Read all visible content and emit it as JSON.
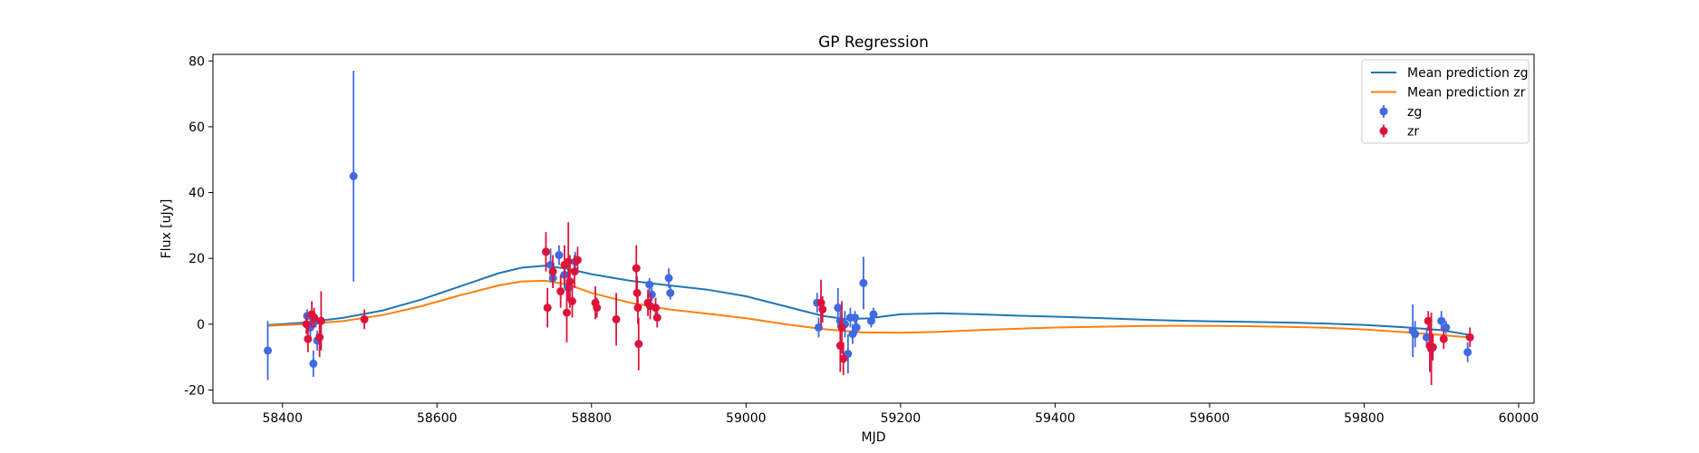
{
  "chart_data": {
    "type": "scatter",
    "title": "GP Regression",
    "xlabel": "MJD",
    "ylabel": "Flux [uJy]",
    "xlim": [
      58310,
      60020
    ],
    "ylim": [
      -24,
      82
    ],
    "xticks": [
      58400,
      58600,
      58800,
      59000,
      59200,
      59400,
      59600,
      59800,
      60000
    ],
    "yticks": [
      -20,
      0,
      20,
      40,
      60,
      80
    ],
    "legend_position": "top-right",
    "legend": [
      {
        "label": "Mean prediction zg",
        "kind": "line",
        "color": "#1f77b4"
      },
      {
        "label": "Mean prediction zr",
        "kind": "line",
        "color": "#ff7f0e"
      },
      {
        "label": "zg",
        "kind": "errorbar",
        "color": "#4169e1"
      },
      {
        "label": "zr",
        "kind": "errorbar",
        "color": "#dc143c"
      }
    ],
    "lines": [
      {
        "name": "Mean prediction zg",
        "color": "#1f77b4",
        "x": [
          58380,
          58430,
          58480,
          58530,
          58580,
          58630,
          58680,
          58710,
          58740,
          58770,
          58800,
          58850,
          58900,
          58950,
          59000,
          59050,
          59100,
          59130,
          59160,
          59200,
          59250,
          59300,
          59350,
          59400,
          59450,
          59500,
          59550,
          59600,
          59650,
          59700,
          59750,
          59800,
          59850,
          59900,
          59935
        ],
        "y": [
          -0.3,
          0.5,
          2.0,
          4.2,
          7.5,
          11.5,
          15.5,
          17.2,
          17.8,
          16.8,
          15.2,
          13.2,
          11.8,
          10.5,
          8.5,
          5.5,
          2.5,
          1.5,
          1.8,
          3.0,
          3.3,
          3.0,
          2.6,
          2.3,
          1.9,
          1.5,
          1.1,
          0.9,
          0.7,
          0.5,
          0.2,
          -0.2,
          -0.9,
          -1.8,
          -3.2
        ]
      },
      {
        "name": "Mean prediction zr",
        "color": "#ff7f0e",
        "x": [
          58380,
          58430,
          58480,
          58530,
          58580,
          58630,
          58680,
          58710,
          58740,
          58770,
          58800,
          58850,
          58900,
          58950,
          59000,
          59050,
          59100,
          59150,
          59200,
          59250,
          59300,
          59350,
          59400,
          59450,
          59500,
          59550,
          59600,
          59650,
          59700,
          59750,
          59800,
          59850,
          59900,
          59935
        ],
        "y": [
          -0.5,
          0.0,
          1.0,
          2.8,
          5.5,
          8.8,
          11.8,
          13.0,
          13.2,
          12.0,
          9.5,
          6.5,
          4.5,
          3.2,
          1.8,
          0.0,
          -1.5,
          -2.5,
          -2.6,
          -2.3,
          -1.8,
          -1.4,
          -1.0,
          -0.8,
          -0.6,
          -0.5,
          -0.5,
          -0.6,
          -0.8,
          -1.1,
          -1.6,
          -2.4,
          -3.3,
          -4.0
        ]
      }
    ],
    "series": [
      {
        "name": "zg",
        "color": "#4169e1",
        "points": [
          {
            "x": 58381,
            "y": -8,
            "err": 9
          },
          {
            "x": 58432,
            "y": 2.5,
            "err": 2
          },
          {
            "x": 58436,
            "y": -1,
            "err": 4
          },
          {
            "x": 58440,
            "y": -12,
            "err": 4
          },
          {
            "x": 58443,
            "y": 1,
            "err": 2
          },
          {
            "x": 58445,
            "y": -5,
            "err": 3
          },
          {
            "x": 58492,
            "y": 45,
            "err": 32
          },
          {
            "x": 58747,
            "y": 18,
            "err": 5
          },
          {
            "x": 58750,
            "y": 14,
            "err": 3
          },
          {
            "x": 58758,
            "y": 21,
            "err": 3
          },
          {
            "x": 58765,
            "y": 15,
            "err": 4
          },
          {
            "x": 58770,
            "y": 11,
            "err": 4
          },
          {
            "x": 58779,
            "y": 19,
            "err": 3
          },
          {
            "x": 58875,
            "y": 12,
            "err": 2
          },
          {
            "x": 58878,
            "y": 9,
            "err": 2
          },
          {
            "x": 58900,
            "y": 14,
            "err": 3
          },
          {
            "x": 58902,
            "y": 9.5,
            "err": 2
          },
          {
            "x": 59092,
            "y": 6.5,
            "err": 3
          },
          {
            "x": 59094,
            "y": -1,
            "err": 3
          },
          {
            "x": 59119,
            "y": 5,
            "err": 6
          },
          {
            "x": 59122,
            "y": 1,
            "err": 3
          },
          {
            "x": 59128,
            "y": 0,
            "err": 4
          },
          {
            "x": 59132,
            "y": -9,
            "err": 6
          },
          {
            "x": 59135,
            "y": 2,
            "err": 3
          },
          {
            "x": 59138,
            "y": -3,
            "err": 3
          },
          {
            "x": 59141,
            "y": 2,
            "err": 2
          },
          {
            "x": 59143,
            "y": -1,
            "err": 2
          },
          {
            "x": 59152,
            "y": 12.5,
            "err": 8
          },
          {
            "x": 59162,
            "y": 1,
            "err": 2
          },
          {
            "x": 59165,
            "y": 3,
            "err": 2
          },
          {
            "x": 59863,
            "y": -2,
            "err": 8
          },
          {
            "x": 59866,
            "y": -3,
            "err": 4
          },
          {
            "x": 59881,
            "y": -4,
            "err": 3
          },
          {
            "x": 59900,
            "y": 1,
            "err": 3
          },
          {
            "x": 59906,
            "y": -1,
            "err": 2
          },
          {
            "x": 59934,
            "y": -8.5,
            "err": 3
          }
        ]
      },
      {
        "name": "zr",
        "color": "#dc143c",
        "points": [
          {
            "x": 58431,
            "y": 0,
            "err": 3
          },
          {
            "x": 58433,
            "y": -4.5,
            "err": 4
          },
          {
            "x": 58438,
            "y": 3,
            "err": 4
          },
          {
            "x": 58441,
            "y": 2,
            "err": 3
          },
          {
            "x": 58448,
            "y": -4,
            "err": 6
          },
          {
            "x": 58450,
            "y": 1,
            "err": 9
          },
          {
            "x": 58506,
            "y": 1.5,
            "err": 3
          },
          {
            "x": 58741,
            "y": 22,
            "err": 6
          },
          {
            "x": 58743,
            "y": 5,
            "err": 6
          },
          {
            "x": 58750,
            "y": 16,
            "err": 5
          },
          {
            "x": 58760,
            "y": 10,
            "err": 5
          },
          {
            "x": 58765,
            "y": 18,
            "err": 6
          },
          {
            "x": 58768,
            "y": 3.5,
            "err": 9
          },
          {
            "x": 58770,
            "y": 19,
            "err": 12
          },
          {
            "x": 58772,
            "y": 13,
            "err": 8
          },
          {
            "x": 58775,
            "y": 7,
            "err": 5
          },
          {
            "x": 58778,
            "y": 16,
            "err": 5
          },
          {
            "x": 58782,
            "y": 19.5,
            "err": 4
          },
          {
            "x": 58805,
            "y": 6.5,
            "err": 5
          },
          {
            "x": 58807,
            "y": 5,
            "err": 3
          },
          {
            "x": 58832,
            "y": 1.5,
            "err": 8
          },
          {
            "x": 58858,
            "y": 17,
            "err": 7
          },
          {
            "x": 58859,
            "y": 9.5,
            "err": 5
          },
          {
            "x": 58860,
            "y": 5,
            "err": 5
          },
          {
            "x": 58861,
            "y": -6,
            "err": 8
          },
          {
            "x": 58873,
            "y": 6.5,
            "err": 4
          },
          {
            "x": 58876,
            "y": 5.5,
            "err": 4
          },
          {
            "x": 58883,
            "y": 5,
            "err": 3
          },
          {
            "x": 58885,
            "y": 2,
            "err": 3
          },
          {
            "x": 59097,
            "y": 6.5,
            "err": 7
          },
          {
            "x": 59099,
            "y": 4.5,
            "err": 4
          },
          {
            "x": 59122,
            "y": -6.5,
            "err": 8
          },
          {
            "x": 59124,
            "y": -1,
            "err": 8
          },
          {
            "x": 59126,
            "y": -10.5,
            "err": 5
          },
          {
            "x": 59883,
            "y": 1,
            "err": 3
          },
          {
            "x": 59885,
            "y": -6.5,
            "err": 8
          },
          {
            "x": 59887,
            "y": -7.5,
            "err": 11
          },
          {
            "x": 59889,
            "y": -7,
            "err": 4
          },
          {
            "x": 59903,
            "y": -4.5,
            "err": 3
          },
          {
            "x": 59937,
            "y": -4,
            "err": 3
          }
        ]
      }
    ]
  }
}
